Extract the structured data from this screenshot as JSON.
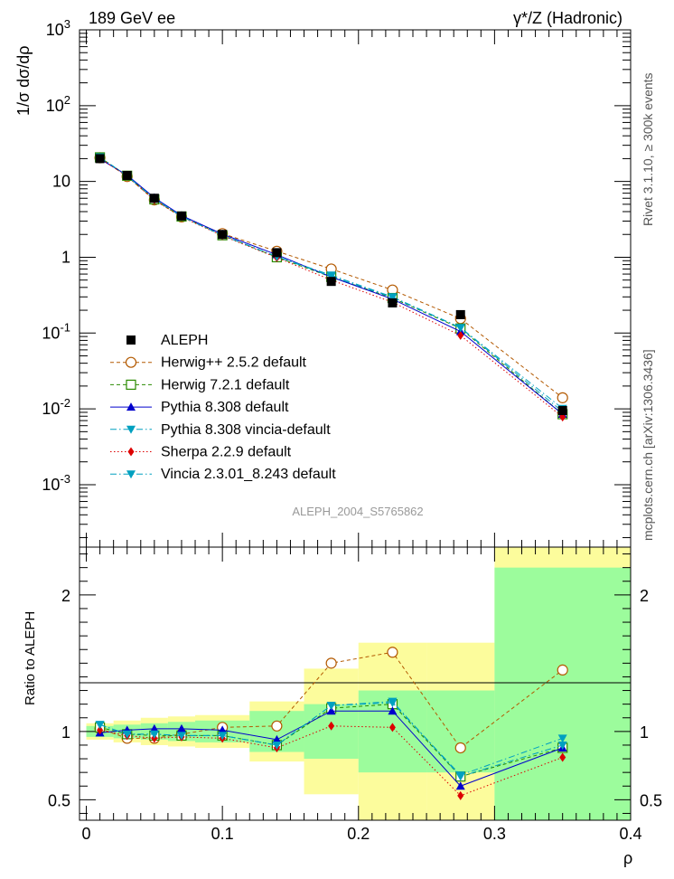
{
  "header": {
    "left_title": "189 GeV ee",
    "right_title": "γ*/Z (Hadronic)"
  },
  "side_labels": {
    "rivet": "Rivet 3.1.10, ≥ 300k events",
    "mcplots": "mcplots.cern.ch [arXiv:1306.3436]"
  },
  "watermark": "ALEPH_2004_S5765862",
  "chart_data": [
    {
      "type": "line",
      "panel": "main",
      "ylabel": "1/σ  dσ/dρ",
      "yscale": "log",
      "ylim": [
        0.00015,
        1000
      ],
      "xlim": [
        -0.005,
        0.4
      ],
      "y_tick_labels": [
        "10^3",
        "10^2",
        "10",
        "1",
        "10^-1",
        "10^-2",
        "10^-3"
      ],
      "x": [
        0.01,
        0.03,
        0.05,
        0.07,
        0.1,
        0.14,
        0.18,
        0.225,
        0.275,
        0.35
      ],
      "x_bin_edges": [
        0,
        0.02,
        0.04,
        0.06,
        0.08,
        0.12,
        0.16,
        0.2,
        0.25,
        0.3,
        0.4
      ],
      "series": [
        {
          "name": "ALEPH",
          "color": "#000000",
          "marker": "square-filled",
          "line": "none",
          "values": [
            20.0,
            12.0,
            6.0,
            3.5,
            2.0,
            1.15,
            0.48,
            0.25,
            0.175,
            0.0095
          ]
        },
        {
          "name": "Herwig++ 2.5.2 default",
          "color": "#b35900",
          "marker": "circle-open",
          "line": "dashed",
          "values": [
            20.5,
            11.6,
            5.7,
            3.4,
            2.05,
            1.2,
            0.7,
            0.37,
            0.155,
            0.014
          ]
        },
        {
          "name": "Herwig 7.2.1 default",
          "color": "#2a8a00",
          "marker": "square-open",
          "line": "dashed",
          "values": [
            20.8,
            11.9,
            5.8,
            3.45,
            1.95,
            1.0,
            0.55,
            0.29,
            0.115,
            0.0085
          ]
        },
        {
          "name": "Pythia 8.308 default",
          "color": "#0000cc",
          "marker": "triangle-up",
          "line": "solid",
          "values": [
            19.8,
            12.1,
            6.1,
            3.55,
            2.02,
            1.08,
            0.55,
            0.28,
            0.105,
            0.0085
          ]
        },
        {
          "name": "Pythia 8.308 vincia-default",
          "color": "#00a0c0",
          "marker": "triangle-down",
          "line": "dashdot",
          "values": [
            21.0,
            11.8,
            5.9,
            3.45,
            1.95,
            1.02,
            0.56,
            0.295,
            0.117,
            0.0092
          ]
        },
        {
          "name": "Sherpa 2.2.9 default",
          "color": "#dd0000",
          "marker": "diamond",
          "line": "dotted",
          "values": [
            20.2,
            11.7,
            5.7,
            3.4,
            1.92,
            0.99,
            0.5,
            0.255,
            0.093,
            0.0078
          ]
        },
        {
          "name": "Vincia 2.3.01_8.243 default",
          "color": "#00a0c0",
          "marker": "triangle-down",
          "line": "dashdot",
          "values": [
            21.0,
            11.8,
            5.9,
            3.45,
            1.95,
            1.02,
            0.58,
            0.3,
            0.118,
            0.0101
          ]
        }
      ]
    },
    {
      "type": "line",
      "panel": "ratio",
      "ylabel": "Ratio to ALEPH",
      "xlabel": "ρ",
      "ylim": [
        0.35,
        2.35
      ],
      "xlim": [
        -0.005,
        0.4
      ],
      "y_tick_labels": [
        "0.5",
        "1",
        "2"
      ],
      "x_tick_labels": [
        "0",
        "0.1",
        "0.2",
        "0.3",
        "0.4"
      ],
      "x": [
        0.01,
        0.03,
        0.05,
        0.07,
        0.1,
        0.14,
        0.18,
        0.225,
        0.275,
        0.35
      ],
      "x_bin_edges": [
        0,
        0.02,
        0.04,
        0.06,
        0.08,
        0.12,
        0.16,
        0.2,
        0.25,
        0.3,
        0.4
      ],
      "band_inner_halfwidth": [
        0.04,
        0.05,
        0.06,
        0.07,
        0.08,
        0.15,
        0.2,
        0.3,
        0.3,
        1.2
      ],
      "band_outer_halfwidth": [
        0.06,
        0.08,
        0.1,
        0.11,
        0.12,
        0.22,
        0.46,
        0.65,
        0.65,
        1.35
      ],
      "band_colors": {
        "inner": "#9cfc9c",
        "outer": "#fcfc9c"
      },
      "series": [
        {
          "name": "Herwig++ 2.5.2 default",
          "color": "#b35900",
          "marker": "circle-open",
          "line": "dashed",
          "values": [
            1.02,
            0.95,
            0.95,
            0.98,
            1.03,
            1.04,
            1.5,
            1.58,
            0.88,
            1.45
          ]
        },
        {
          "name": "Herwig 7.2.1 default",
          "color": "#2a8a00",
          "marker": "square-open",
          "line": "dashed",
          "values": [
            1.03,
            0.98,
            0.97,
            0.97,
            0.97,
            0.9,
            1.17,
            1.2,
            0.67,
            0.88
          ]
        },
        {
          "name": "Pythia 8.308 default",
          "color": "#0000cc",
          "marker": "triangle-up",
          "line": "solid",
          "values": [
            0.99,
            1.01,
            1.02,
            1.02,
            1.01,
            0.94,
            1.15,
            1.15,
            0.6,
            0.88
          ]
        },
        {
          "name": "Pythia 8.308 vincia-default",
          "color": "#00a0c0",
          "marker": "triangle-down",
          "line": "dashdot",
          "values": [
            1.05,
            0.98,
            0.98,
            0.97,
            0.97,
            0.9,
            1.19,
            1.22,
            0.67,
            0.9
          ]
        },
        {
          "name": "Sherpa 2.2.9 default",
          "color": "#dd0000",
          "marker": "diamond",
          "line": "dotted",
          "values": [
            1.01,
            0.97,
            0.95,
            0.96,
            0.95,
            0.88,
            1.04,
            1.03,
            0.53,
            0.81
          ]
        },
        {
          "name": "Vincia 2.3.01_8.243 default",
          "color": "#00a0c0",
          "marker": "triangle-down",
          "line": "dashdot",
          "values": [
            1.05,
            0.98,
            0.98,
            0.97,
            0.97,
            0.9,
            1.19,
            1.21,
            0.68,
            0.95
          ]
        }
      ]
    }
  ]
}
